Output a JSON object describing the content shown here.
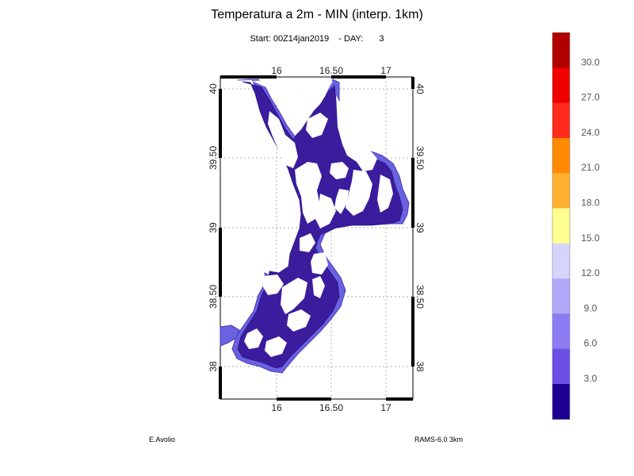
{
  "title": "Temperatura a 2m - MIN (interp. 1km)",
  "subtitle": {
    "start_label": "Start:",
    "start_value": "00Z14jan2019",
    "day_label": "- DAY:",
    "day_value": "3"
  },
  "map": {
    "lon_ticks": [
      "16",
      "16.50",
      "17"
    ],
    "lat_ticks": [
      "40",
      "39.50",
      "39",
      "38.50",
      "38"
    ],
    "land_color": "#ffffff",
    "cold_fill_color": "#3a1c9c",
    "coast_fill_color": "#6a62e0"
  },
  "colorbar": {
    "colors": [
      "#b00000",
      "#f00000",
      "#ff2a1a",
      "#ff8a00",
      "#ffb030",
      "#ffff90",
      "#d4d4ff",
      "#b2a8f8",
      "#8d7cf2",
      "#6a50e6",
      "#1c0094"
    ],
    "labels": [
      "30.0",
      "27.0",
      "24.0",
      "21.0",
      "18.0",
      "15.0",
      "12.0",
      "9.0",
      "6.0",
      "3.0"
    ]
  },
  "footer": {
    "author": "E.Avolio",
    "model": "RAMS-6.0 3km"
  }
}
